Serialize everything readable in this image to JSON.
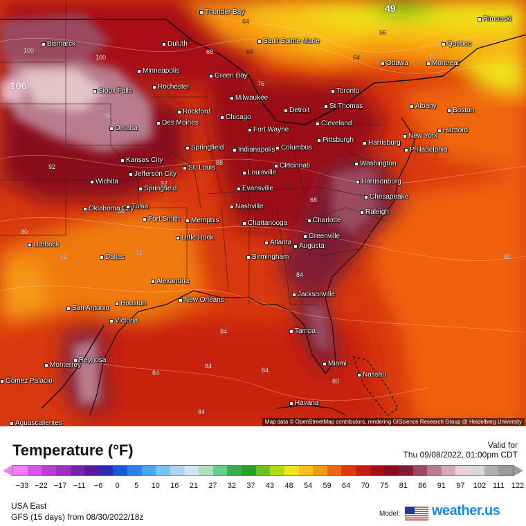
{
  "map": {
    "attribution": "Map data © OpenStreetMap contributors, rendering GIScience Research Group @ Heidelberg University",
    "cities": [
      {
        "name": "Thunder Bay"
      },
      {
        "name": "Rimouski"
      },
      {
        "name": "Bismarck"
      },
      {
        "name": "Duluth"
      },
      {
        "name": "Sault Sainte Marie"
      },
      {
        "name": "Quebec"
      },
      {
        "name": "Ottawa"
      },
      {
        "name": "Montreal"
      },
      {
        "name": "Minneapolis"
      },
      {
        "name": "Green Bay"
      },
      {
        "name": "Rochester"
      },
      {
        "name": "Toronto"
      },
      {
        "name": "Sioux Falls"
      },
      {
        "name": "Milwaukee"
      },
      {
        "name": "St Thomas"
      },
      {
        "name": "Albany"
      },
      {
        "name": "Boston"
      },
      {
        "name": "Rockford"
      },
      {
        "name": "Detroit"
      },
      {
        "name": "Chicago"
      },
      {
        "name": "Des Moines"
      },
      {
        "name": "Cleveland"
      },
      {
        "name": "Hartford"
      },
      {
        "name": "Omaha"
      },
      {
        "name": "Fort Wayne"
      },
      {
        "name": "New York"
      },
      {
        "name": "Pittsburgh"
      },
      {
        "name": "Harrisburg"
      },
      {
        "name": "Philadelphia"
      },
      {
        "name": "Springfield"
      },
      {
        "name": "Indianapolis"
      },
      {
        "name": "Columbus"
      },
      {
        "name": "Kansas City"
      },
      {
        "name": "Cincinnati"
      },
      {
        "name": "Washington"
      },
      {
        "name": "St. Louis"
      },
      {
        "name": "Jefferson City"
      },
      {
        "name": "Louisville"
      },
      {
        "name": "Harrisonburg"
      },
      {
        "name": "Wichita"
      },
      {
        "name": "Springfield"
      },
      {
        "name": "Evansville"
      },
      {
        "name": "Chesapeake"
      },
      {
        "name": "Nashville"
      },
      {
        "name": "Oklahoma City"
      },
      {
        "name": "Tulsa"
      },
      {
        "name": "Raleigh"
      },
      {
        "name": "Fort Smith"
      },
      {
        "name": "Memphis"
      },
      {
        "name": "Chattanooga"
      },
      {
        "name": "Charlotte"
      },
      {
        "name": "Greenville"
      },
      {
        "name": "Little Rock"
      },
      {
        "name": "Atlanta"
      },
      {
        "name": "Augusta"
      },
      {
        "name": "Lubbock"
      },
      {
        "name": "Dallas"
      },
      {
        "name": "Birmingham"
      },
      {
        "name": "Alexandria"
      },
      {
        "name": "Jacksonville"
      },
      {
        "name": "New Orleans"
      },
      {
        "name": "Houston"
      },
      {
        "name": "San Antonio"
      },
      {
        "name": "Victoria"
      },
      {
        "name": "Tampa"
      },
      {
        "name": "Reynosa"
      },
      {
        "name": "Miami"
      },
      {
        "name": "Monterrey"
      },
      {
        "name": "Nassau"
      },
      {
        "name": "Havana"
      },
      {
        "name": "Aguascalientes"
      },
      {
        "name": "Gómez Palacio"
      }
    ],
    "contour_labels": [
      "106",
      "100",
      "100",
      "96",
      "92",
      "92",
      "88",
      "84",
      "84",
      "80",
      "80",
      "76",
      "76",
      "72",
      "72",
      "68",
      "68",
      "64",
      "64",
      "60",
      "60",
      "56",
      "49",
      "84",
      "84",
      "84",
      "84",
      "80",
      "88",
      "88"
    ]
  },
  "legend": {
    "title": "Temperature (°F)",
    "valid_label": "Valid for",
    "valid_time": "Thu 09/08/2022, 01:00pm CDT",
    "ticks": [
      "−33",
      "−22",
      "−17",
      "−11",
      "−6",
      "0",
      "5",
      "10",
      "16",
      "21",
      "27",
      "32",
      "37",
      "43",
      "48",
      "54",
      "59",
      "64",
      "70",
      "75",
      "81",
      "86",
      "91",
      "97",
      "102",
      "111",
      "122"
    ],
    "colors": [
      "#f080ff",
      "#d656e8",
      "#b93fd8",
      "#9a2fc6",
      "#7a22b2",
      "#5a1aa0",
      "#2a2ab8",
      "#1e56d8",
      "#2a82ec",
      "#4aa6f2",
      "#7cc2f4",
      "#aad6f4",
      "#cfe8f0",
      "#a8e0c0",
      "#6acc8a",
      "#34b050",
      "#2c9e2a",
      "#6ac41c",
      "#b2dc14",
      "#f0e416",
      "#f8c414",
      "#f8980e",
      "#f0660c",
      "#e0360c",
      "#c81a0e",
      "#a80e12",
      "#8a0c1c",
      "#7e1e34",
      "#9a4a60",
      "#b87c8e",
      "#d8aab6",
      "#ecd0d6",
      "#d8d8d8",
      "#b0b0b0",
      "#9a9a9a"
    ]
  },
  "footer": {
    "region": "USA East",
    "model_run": "GFS (15 days) from 08/30/2022/18z",
    "model_label": "Model:",
    "brand": "weather.us"
  }
}
